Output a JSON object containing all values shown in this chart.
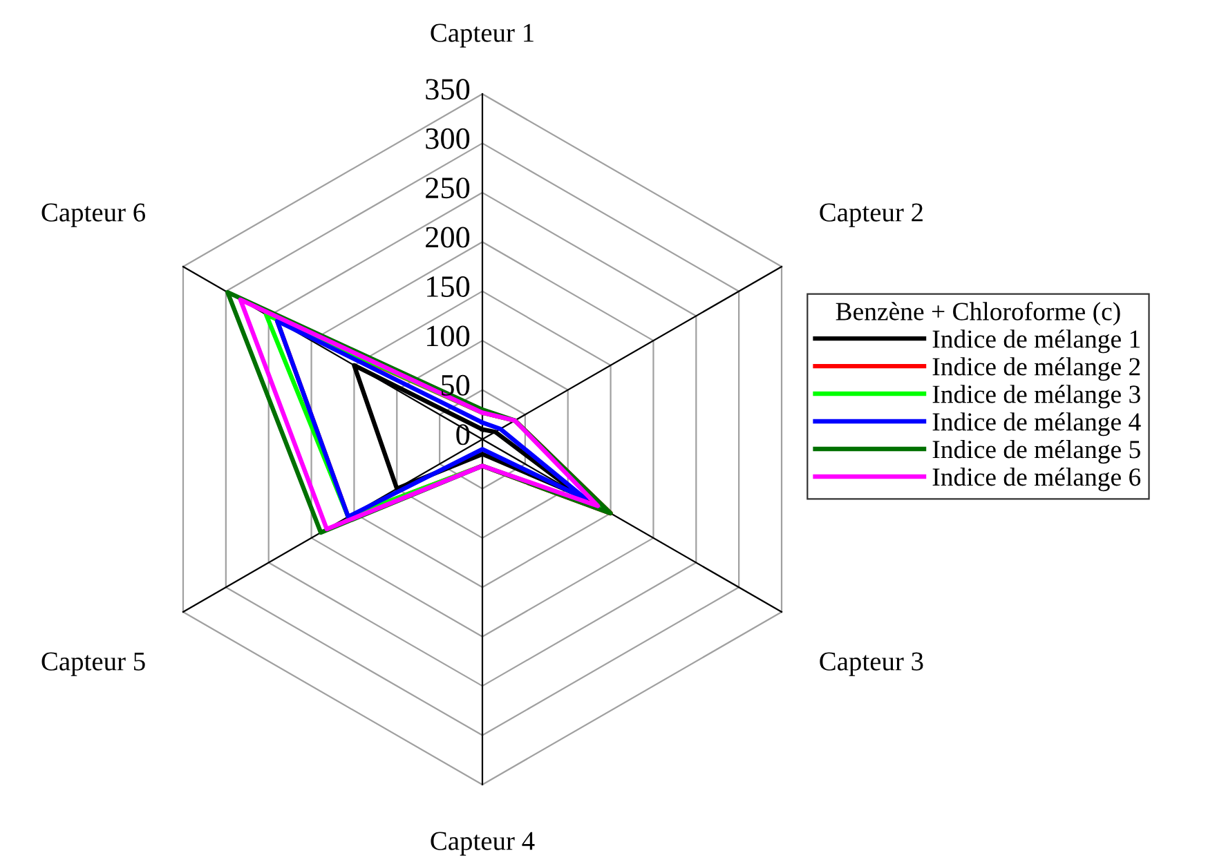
{
  "chart_data": {
    "type": "radar",
    "categories": [
      "Capteur 1",
      "Capteur 2",
      "Capteur 3",
      "Capteur 4",
      "Capteur 5",
      "Capteur 6"
    ],
    "ylim": [
      0,
      350
    ],
    "yticks": [
      0,
      50,
      100,
      150,
      200,
      250,
      300,
      350
    ],
    "legend_title": "Benzène + Chloroforme (c)",
    "legend": "right",
    "grid": true,
    "series": [
      {
        "name": "Indice de mélange 1",
        "color": "#000000",
        "values": [
          10,
          15,
          115,
          15,
          100,
          150
        ]
      },
      {
        "name": "Indice de mélange 2",
        "color": "#ff0000",
        "values": [
          27,
          38,
          150,
          27,
          157,
          240
        ]
      },
      {
        "name": "Indice de mélange 3",
        "color": "#00ff00",
        "values": [
          27,
          38,
          140,
          27,
          157,
          253
        ]
      },
      {
        "name": "Indice de mélange 4",
        "color": "#0000ff",
        "values": [
          17,
          21,
          121,
          10,
          157,
          240
        ]
      },
      {
        "name": "Indice de mélange 5",
        "color": "#007000",
        "values": [
          30,
          38,
          150,
          27,
          189,
          298
        ]
      },
      {
        "name": "Indice de mélange 6",
        "color": "#ff00ff",
        "values": [
          27,
          38,
          135,
          27,
          182,
          283
        ]
      }
    ]
  }
}
